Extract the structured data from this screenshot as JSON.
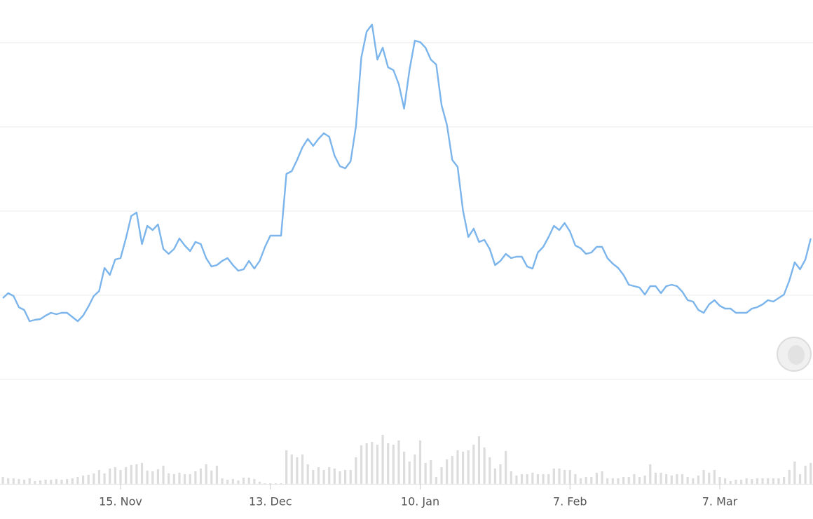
{
  "chart_data": {
    "type": "line",
    "categories": [
      null,
      null,
      null,
      null,
      null,
      null,
      null,
      null,
      null,
      null,
      null,
      null,
      null,
      null,
      null,
      null,
      null,
      null,
      null,
      null,
      null,
      null,
      "15. Nov",
      null,
      null,
      null,
      null,
      null,
      null,
      null,
      null,
      null,
      null,
      null,
      null,
      null,
      null,
      null,
      null,
      null,
      null,
      null,
      null,
      null,
      null,
      null,
      null,
      null,
      null,
      null,
      "13. Dec",
      null,
      null,
      null,
      null,
      null,
      null,
      null,
      null,
      null,
      null,
      null,
      null,
      null,
      null,
      null,
      null,
      null,
      null,
      null,
      null,
      null,
      null,
      null,
      null,
      null,
      null,
      null,
      "10. Jan",
      null,
      null,
      null,
      null,
      null,
      null,
      null,
      null,
      null,
      null,
      null,
      null,
      null,
      null,
      null,
      null,
      null,
      null,
      null,
      null,
      null,
      null,
      null,
      null,
      null,
      null,
      null,
      "7. Feb",
      null,
      null,
      null,
      null,
      null,
      null,
      null,
      null,
      null,
      null,
      null,
      null,
      null,
      null,
      null,
      null,
      null,
      null,
      null,
      null,
      null,
      null,
      null,
      null,
      null,
      null,
      null,
      "7. Mar",
      null,
      null,
      null,
      null,
      null,
      null,
      null,
      null,
      null,
      null,
      null,
      null,
      null,
      null,
      null,
      null,
      null
    ],
    "series": [
      {
        "color": "#7cb5ec",
        "values": [
          116,
          123,
          119,
          103,
          99,
          83,
          85,
          86,
          91,
          95,
          93,
          95,
          95,
          89,
          83,
          91,
          104,
          119,
          126,
          159,
          149,
          171,
          173,
          201,
          233,
          238,
          193,
          219,
          213,
          221,
          186,
          179,
          186,
          201,
          191,
          183,
          196,
          193,
          173,
          161,
          163,
          169,
          173,
          163,
          155,
          157,
          169,
          158,
          169,
          189,
          205,
          205,
          205,
          293,
          297,
          313,
          331,
          343,
          333,
          343,
          351,
          346,
          319,
          304,
          301,
          311,
          361,
          459,
          496,
          506,
          456,
          473,
          445,
          441,
          421,
          386,
          441,
          483,
          481,
          473,
          456,
          449,
          391,
          363,
          313,
          303,
          241,
          203,
          215,
          196,
          199,
          186,
          163,
          169,
          179,
          173,
          175,
          175,
          161,
          158,
          181,
          189,
          203,
          219,
          213,
          223,
          211,
          191,
          187,
          179,
          181,
          189,
          189,
          173,
          165,
          159,
          149,
          135,
          133,
          131,
          121,
          133,
          133,
          123,
          133,
          135,
          133,
          125,
          113,
          111,
          99,
          95,
          107,
          113,
          105,
          101,
          101,
          95,
          95,
          95,
          101,
          103,
          107,
          113,
          111,
          116,
          121,
          141,
          167,
          157,
          171,
          201
        ]
      },
      {
        "color": "#dddddd",
        "axis": "y2",
        "values": [
          10,
          8,
          8,
          7,
          6,
          8,
          4,
          5,
          6,
          6,
          7,
          6,
          7,
          8,
          10,
          12,
          13,
          15,
          20,
          15,
          22,
          24,
          20,
          24,
          27,
          28,
          30,
          19,
          18,
          21,
          26,
          15,
          14,
          16,
          14,
          14,
          18,
          22,
          28,
          19,
          26,
          8,
          6,
          7,
          5,
          9,
          9,
          7,
          3,
          1,
          1,
          1,
          1,
          48,
          42,
          38,
          42,
          28,
          20,
          24,
          20,
          24,
          22,
          18,
          20,
          20,
          38,
          55,
          58,
          60,
          56,
          70,
          58,
          56,
          62,
          46,
          32,
          42,
          62,
          30,
          34,
          10,
          24,
          35,
          40,
          48,
          46,
          48,
          56,
          68,
          52,
          38,
          22,
          28,
          47,
          18,
          12,
          14,
          14,
          16,
          14,
          14,
          14,
          22,
          22,
          20,
          20,
          14,
          8,
          10,
          10,
          16,
          18,
          8,
          8,
          8,
          10,
          10,
          14,
          10,
          12,
          28,
          16,
          16,
          14,
          12,
          14,
          14,
          10,
          8,
          12,
          20,
          16,
          20,
          10,
          8,
          4,
          6,
          6,
          8,
          7,
          8,
          8,
          8,
          8,
          8,
          10,
          20,
          32,
          14,
          26,
          30
        ]
      }
    ],
    "ylim": [
      0,
      540
    ],
    "yticks": [
      0,
      120,
      240,
      360,
      480
    ],
    "y2lim": [
      0,
      80
    ],
    "grid": true
  }
}
